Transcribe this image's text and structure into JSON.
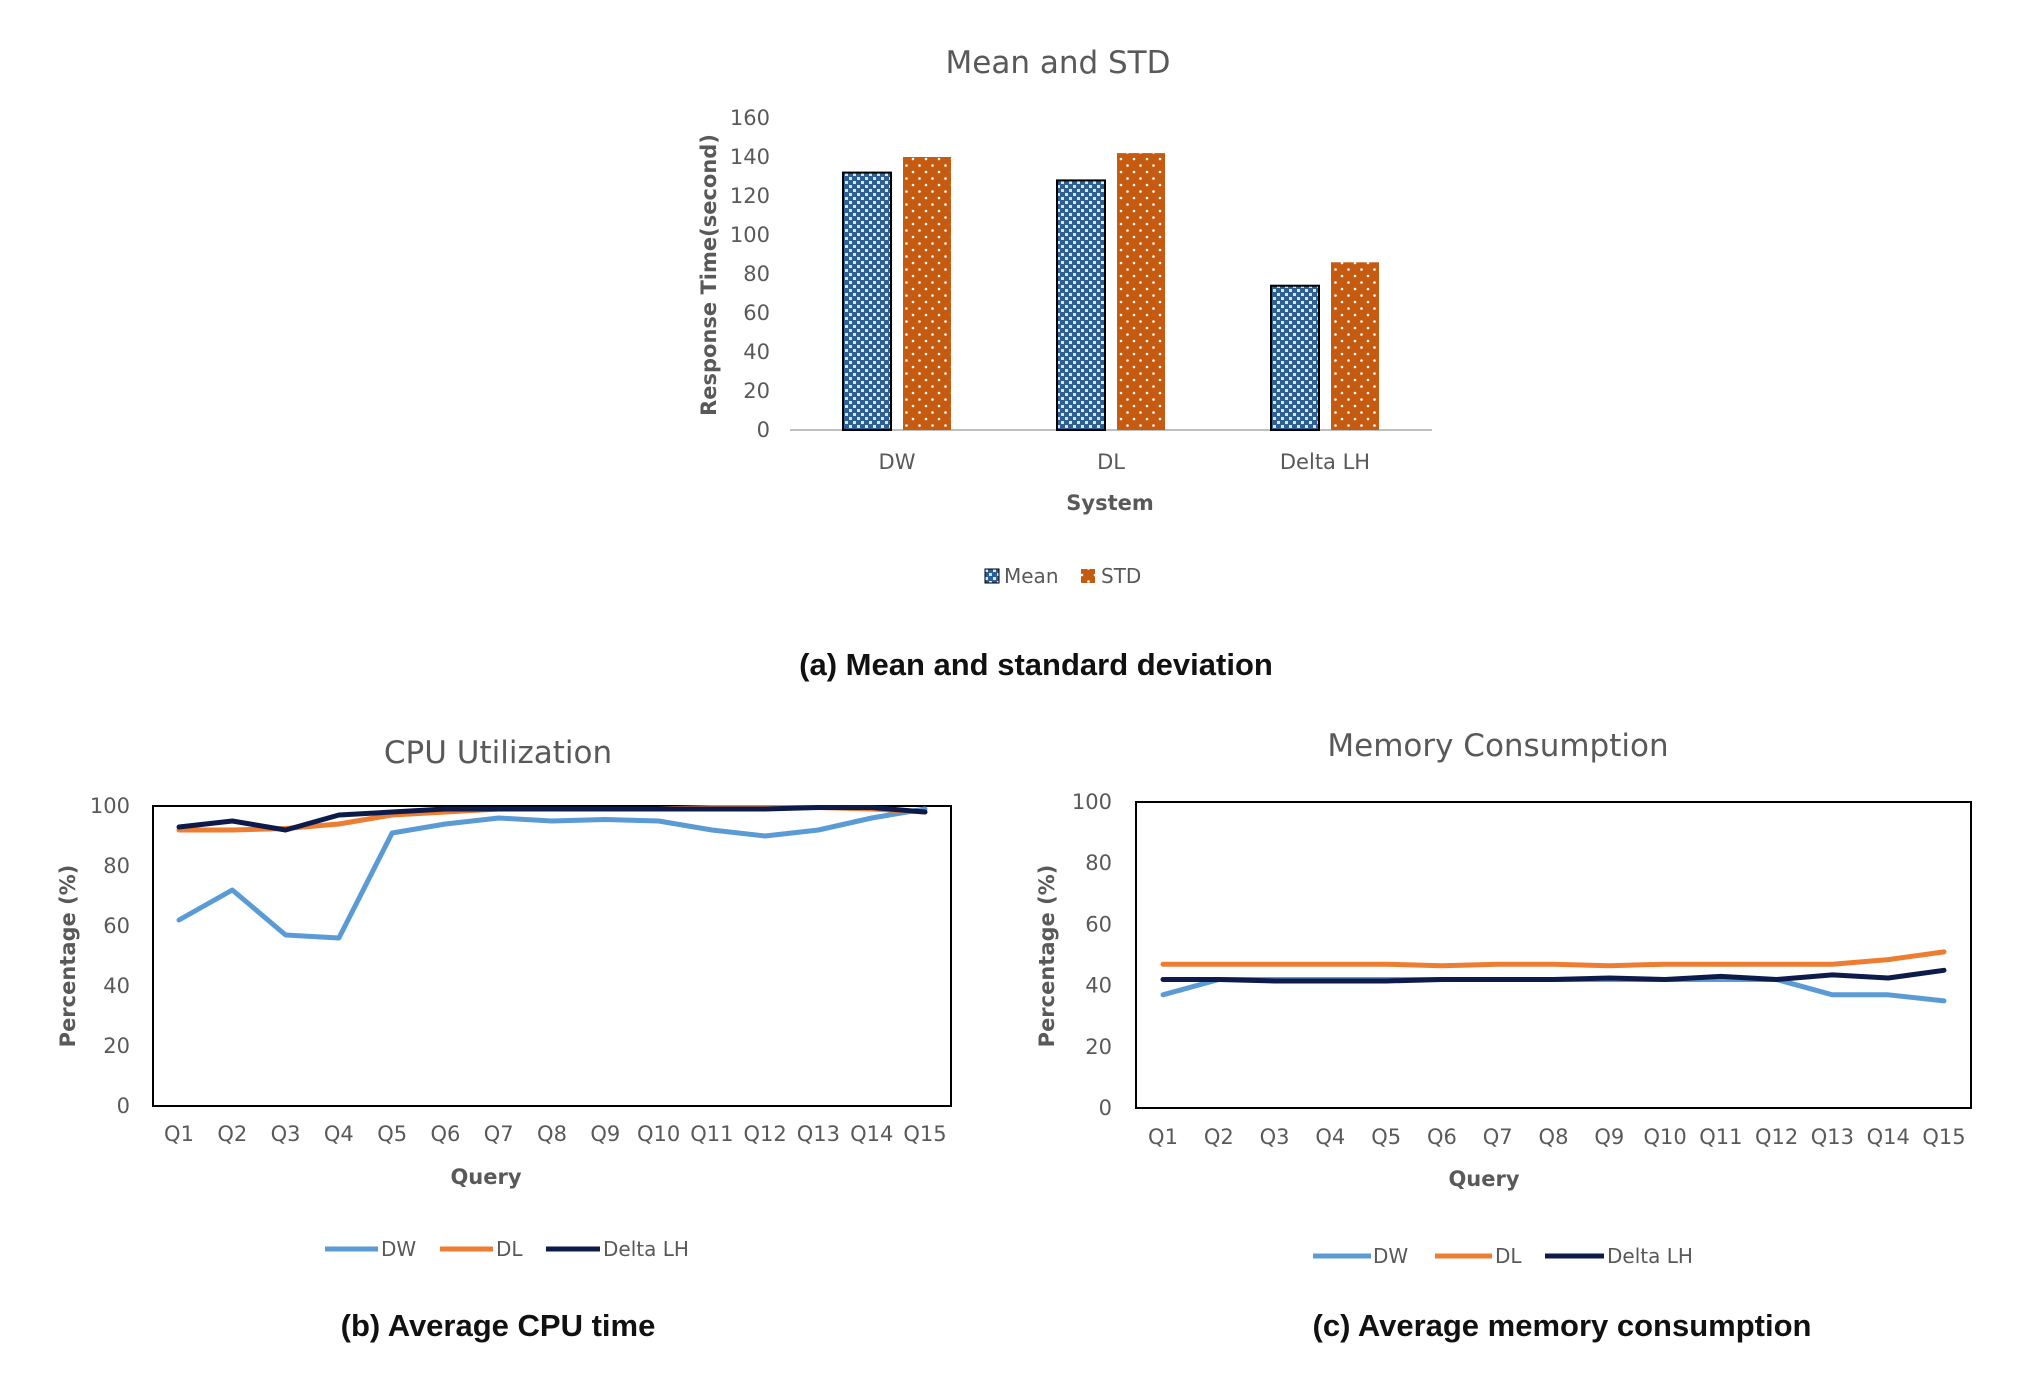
{
  "captions": {
    "a": "(a) Mean and standard deviation",
    "b": "(b) Average CPU time",
    "c": "(c) Average memory consumption"
  },
  "colors": {
    "mean_bar": "#2e5f95",
    "std_bar": "#c55a11",
    "dw_line": "#5b9bd5",
    "dl_line": "#ed7d31",
    "delta_line": "#0d1b4b",
    "text": "#595959",
    "grid_axis": "#bfbfbf"
  },
  "chart_data": [
    {
      "id": "mean-std",
      "type": "bar",
      "title": "Mean and STD",
      "xlabel": "System",
      "ylabel": "Response Time(second)",
      "categories": [
        "DW",
        "DL",
        "Delta LH"
      ],
      "series": [
        {
          "name": "Mean",
          "values": [
            132,
            128,
            74
          ]
        },
        {
          "name": "STD",
          "values": [
            140,
            142,
            86
          ]
        }
      ],
      "ylim": [
        0,
        160
      ],
      "yticks": [
        0,
        20,
        40,
        60,
        80,
        100,
        120,
        140,
        160
      ],
      "grid": false,
      "legend": "bottom"
    },
    {
      "id": "cpu",
      "type": "line",
      "title": "CPU Utilization",
      "xlabel": "Query",
      "ylabel": "Percentage (%)",
      "categories": [
        "Q1",
        "Q2",
        "Q3",
        "Q4",
        "Q5",
        "Q6",
        "Q7",
        "Q8",
        "Q9",
        "Q10",
        "Q11",
        "Q12",
        "Q13",
        "Q14",
        "Q15"
      ],
      "series": [
        {
          "name": "DW",
          "values": [
            62,
            72,
            57,
            56,
            91,
            94,
            96,
            95,
            95.5,
            95,
            92,
            90,
            92,
            96,
            99
          ]
        },
        {
          "name": "DL",
          "values": [
            92,
            92,
            92.5,
            94,
            97,
            98,
            99,
            99,
            99,
            99,
            99.5,
            99.5,
            99.5,
            99,
            98
          ]
        },
        {
          "name": "Delta LH",
          "values": [
            93,
            95,
            92,
            97,
            98,
            99,
            99,
            99,
            99,
            99,
            99,
            99,
            99.5,
            99.5,
            98
          ]
        }
      ],
      "ylim": [
        0,
        100
      ],
      "yticks": [
        0,
        20,
        40,
        60,
        80,
        100
      ],
      "grid": false,
      "legend": "bottom"
    },
    {
      "id": "memory",
      "type": "line",
      "title": "Memory Consumption",
      "xlabel": "Query",
      "ylabel": "Percentage (%)",
      "categories": [
        "Q1",
        "Q2",
        "Q3",
        "Q4",
        "Q5",
        "Q6",
        "Q7",
        "Q8",
        "Q9",
        "Q10",
        "Q11",
        "Q12",
        "Q13",
        "Q14",
        "Q15"
      ],
      "series": [
        {
          "name": "DW",
          "values": [
            37,
            42,
            42,
            42,
            42,
            42,
            42,
            42,
            42,
            42,
            42,
            42,
            37,
            37,
            35
          ]
        },
        {
          "name": "DL",
          "values": [
            47,
            47,
            47,
            47,
            47,
            46.5,
            47,
            47,
            46.5,
            47,
            47,
            47,
            47,
            48.5,
            51
          ]
        },
        {
          "name": "Delta LH",
          "values": [
            42,
            42,
            41.5,
            41.5,
            41.5,
            42,
            42,
            42,
            42.5,
            42,
            43,
            42,
            43.5,
            42.5,
            45
          ]
        }
      ],
      "ylim": [
        0,
        100
      ],
      "yticks": [
        0,
        20,
        40,
        60,
        80,
        100
      ],
      "grid": false,
      "legend": "bottom"
    }
  ]
}
